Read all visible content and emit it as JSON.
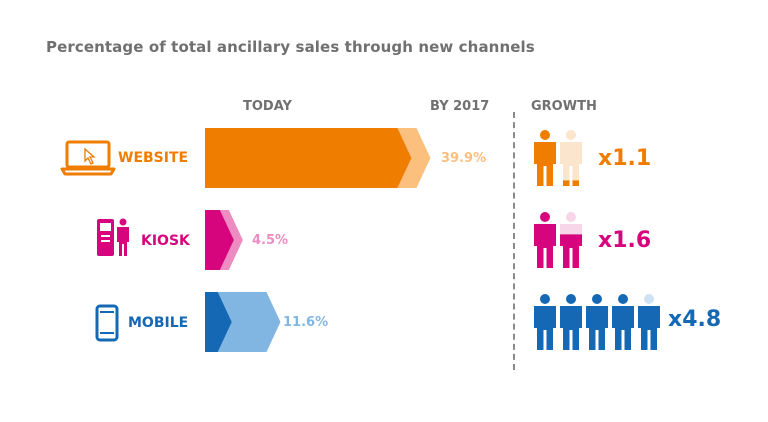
{
  "title": "Percentage of total ancillary sales through new channels",
  "headers": {
    "today": "TODAY",
    "by2017": "BY 2017",
    "growth": "GROWTH"
  },
  "colors": {
    "website": "#ef7d00",
    "website_light": "#fbbf7e",
    "website_ghost": "#fbe5cc",
    "kiosk": "#d6057d",
    "kiosk_light": "#ec8cc3",
    "kiosk_ghost": "#f8d6e9",
    "mobile": "#1468b4",
    "mobile_light": "#82b6e2",
    "mobile_ghost": "#cfe2f3",
    "text_grey": "#707070"
  },
  "chart_data": {
    "type": "bar",
    "title": "Percentage of total ancillary sales through new channels",
    "categories": [
      "WEBSITE",
      "KIOSK",
      "MOBILE"
    ],
    "series": [
      {
        "name": "TODAY",
        "values": [
          36.3,
          2.8,
          2.4
        ]
      },
      {
        "name": "BY 2017",
        "values": [
          39.9,
          4.5,
          11.6
        ]
      }
    ],
    "value_labels": [
      "39.9%",
      "4.5%",
      "11.6%"
    ],
    "growth": [
      {
        "label": "x1.1",
        "multiplier": 1.1
      },
      {
        "label": "x1.6",
        "multiplier": 1.6
      },
      {
        "label": "x4.8",
        "multiplier": 4.8
      }
    ],
    "icons": [
      "laptop-icon",
      "kiosk-icon",
      "mobile-phone-icon"
    ]
  }
}
